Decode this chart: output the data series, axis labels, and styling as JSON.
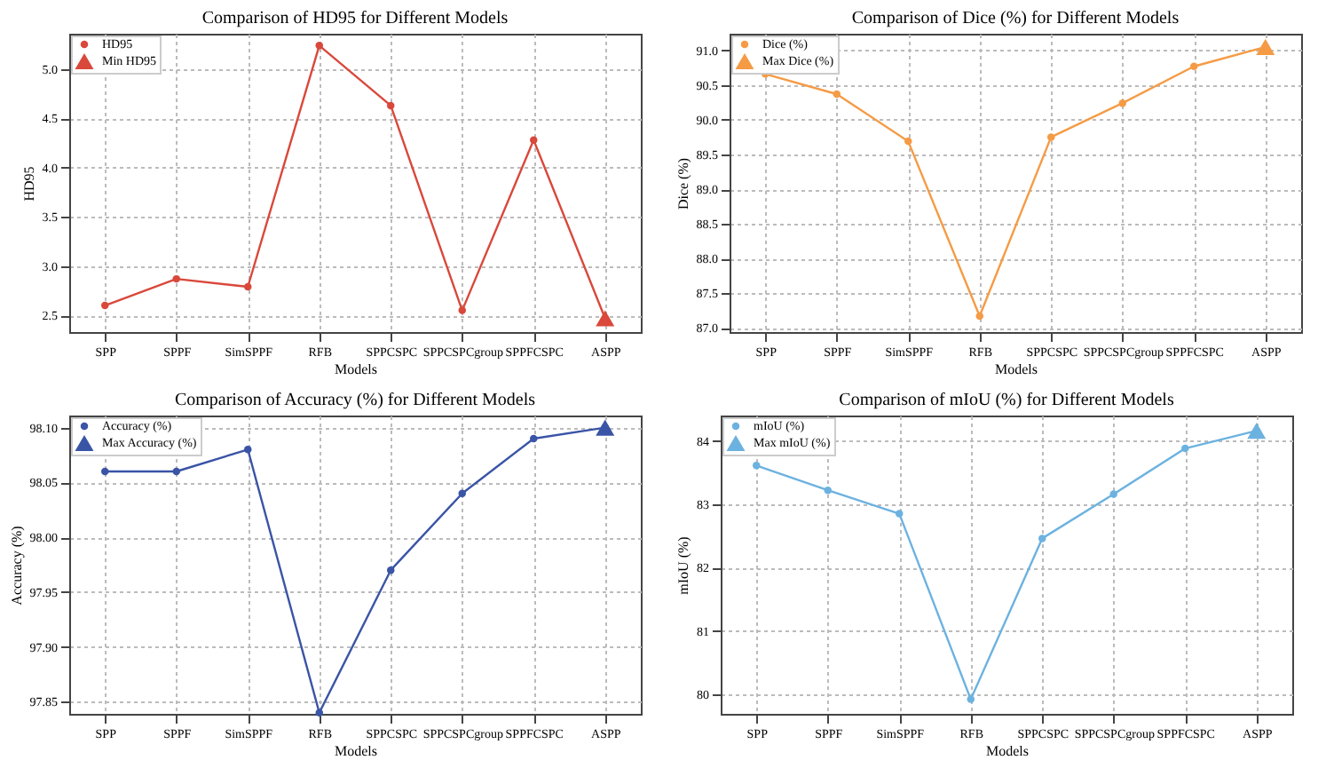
{
  "chart_data": [
    {
      "type": "line",
      "title": "Comparison of HD95 for Different Models",
      "xlabel": "Models",
      "ylabel": "HD95",
      "categories": [
        "SPP",
        "SPPF",
        "SimSPPF",
        "RFB",
        "SPPCSPC",
        "SPPCSPCgroup",
        "SPPFCSPC",
        "ASPP"
      ],
      "series": [
        {
          "name": "HD95",
          "color": "#d9483b",
          "marker": "circle",
          "values": [
            2.6,
            2.87,
            2.79,
            5.24,
            4.63,
            2.55,
            4.28,
            2.47
          ]
        },
        {
          "name": "Min HD95",
          "type": "scatter",
          "color": "#d9483b",
          "marker": "triangle",
          "x": [
            "ASPP"
          ],
          "values": [
            2.47
          ]
        }
      ],
      "ylim": [
        2.33,
        5.36
      ],
      "yticks": [
        {
          "value": 2.5,
          "label": "2.5"
        },
        {
          "value": 3,
          "label": "3.0"
        },
        {
          "value": 3.5,
          "label": "3.5"
        },
        {
          "value": 4,
          "label": "4.0"
        },
        {
          "value": 4.5,
          "label": "4.5"
        },
        {
          "value": 5,
          "label": "5.0"
        }
      ],
      "grid": true,
      "legend": "top left"
    },
    {
      "type": "line",
      "title": "Comparison of Dice (%) for Different Models",
      "xlabel": "Models",
      "ylabel": "Dice (%)",
      "categories": [
        "SPP",
        "SPPF",
        "SimSPPF",
        "RFB",
        "SPPCSPC",
        "SPPCSPCgroup",
        "SPPFCSPC",
        "ASPP"
      ],
      "series": [
        {
          "name": "Dice (%)",
          "color": "#f59b45",
          "marker": "circle",
          "values": [
            90.66,
            90.37,
            89.69,
            87.17,
            89.75,
            90.24,
            90.77,
            91.05
          ]
        },
        {
          "name": "Max Dice (%)",
          "type": "scatter",
          "color": "#f59b45",
          "marker": "triangle",
          "x": [
            "ASPP"
          ],
          "values": [
            91.05
          ]
        }
      ],
      "ylim": [
        86.94,
        91.24
      ],
      "yticks": [
        {
          "value": 87,
          "label": "87.0"
        },
        {
          "value": 87.5,
          "label": "87.5"
        },
        {
          "value": 88,
          "label": "88.0"
        },
        {
          "value": 88.5,
          "label": "88.5"
        },
        {
          "value": 89,
          "label": "89.0"
        },
        {
          "value": 89.5,
          "label": "89.5"
        },
        {
          "value": 90,
          "label": "90.0"
        },
        {
          "value": 90.5,
          "label": "90.5"
        },
        {
          "value": 91,
          "label": "91.0"
        }
      ],
      "grid": true,
      "legend": "top left"
    },
    {
      "type": "line",
      "title": "Comparison of Accuracy (%) for Different Models",
      "xlabel": "Models",
      "ylabel": "Accuracy (%)",
      "categories": [
        "SPP",
        "SPPF",
        "SimSPPF",
        "RFB",
        "SPPCSPC",
        "SPPCSPCgroup",
        "SPPFCSPC",
        "ASPP"
      ],
      "series": [
        {
          "name": "Accuracy (%)",
          "color": "#3a54a6",
          "marker": "circle",
          "values": [
            98.06,
            98.06,
            98.08,
            97.84,
            97.97,
            98.04,
            98.09,
            98.1
          ]
        },
        {
          "name": "Max Accuracy (%)",
          "type": "scatter",
          "color": "#3a54a6",
          "marker": "triangle",
          "x": [
            "ASPP"
          ],
          "values": [
            98.1
          ]
        }
      ],
      "ylim": [
        97.839,
        98.111
      ],
      "yticks": [
        {
          "value": 97.85,
          "label": "97.85"
        },
        {
          "value": 97.9,
          "label": "97.90"
        },
        {
          "value": 97.95,
          "label": "97.95"
        },
        {
          "value": 98,
          "label": "98.00"
        },
        {
          "value": 98.05,
          "label": "98.05"
        },
        {
          "value": 98.1,
          "label": "98.10"
        }
      ],
      "grid": true,
      "legend": "top left"
    },
    {
      "type": "line",
      "title": "Comparison of mIoU (%) for Different Models",
      "xlabel": "Models",
      "ylabel": "mIoU (%)",
      "categories": [
        "SPP",
        "SPPF",
        "SimSPPF",
        "RFB",
        "SPPCSPC",
        "SPPCSPCgroup",
        "SPPFCSPC",
        "ASPP"
      ],
      "series": [
        {
          "name": "mIoU (%)",
          "color": "#6cb2e0",
          "marker": "circle",
          "values": [
            83.61,
            83.22,
            82.85,
            79.92,
            82.46,
            83.16,
            83.88,
            84.16
          ]
        },
        {
          "name": "Max mIoU (%)",
          "type": "scatter",
          "color": "#6cb2e0",
          "marker": "triangle",
          "x": [
            "ASPP"
          ],
          "values": [
            84.16
          ]
        }
      ],
      "ylim": [
        79.69,
        84.4
      ],
      "yticks": [
        80,
        81,
        82,
        83,
        84
      ],
      "grid": true,
      "legend": "top left"
    }
  ]
}
